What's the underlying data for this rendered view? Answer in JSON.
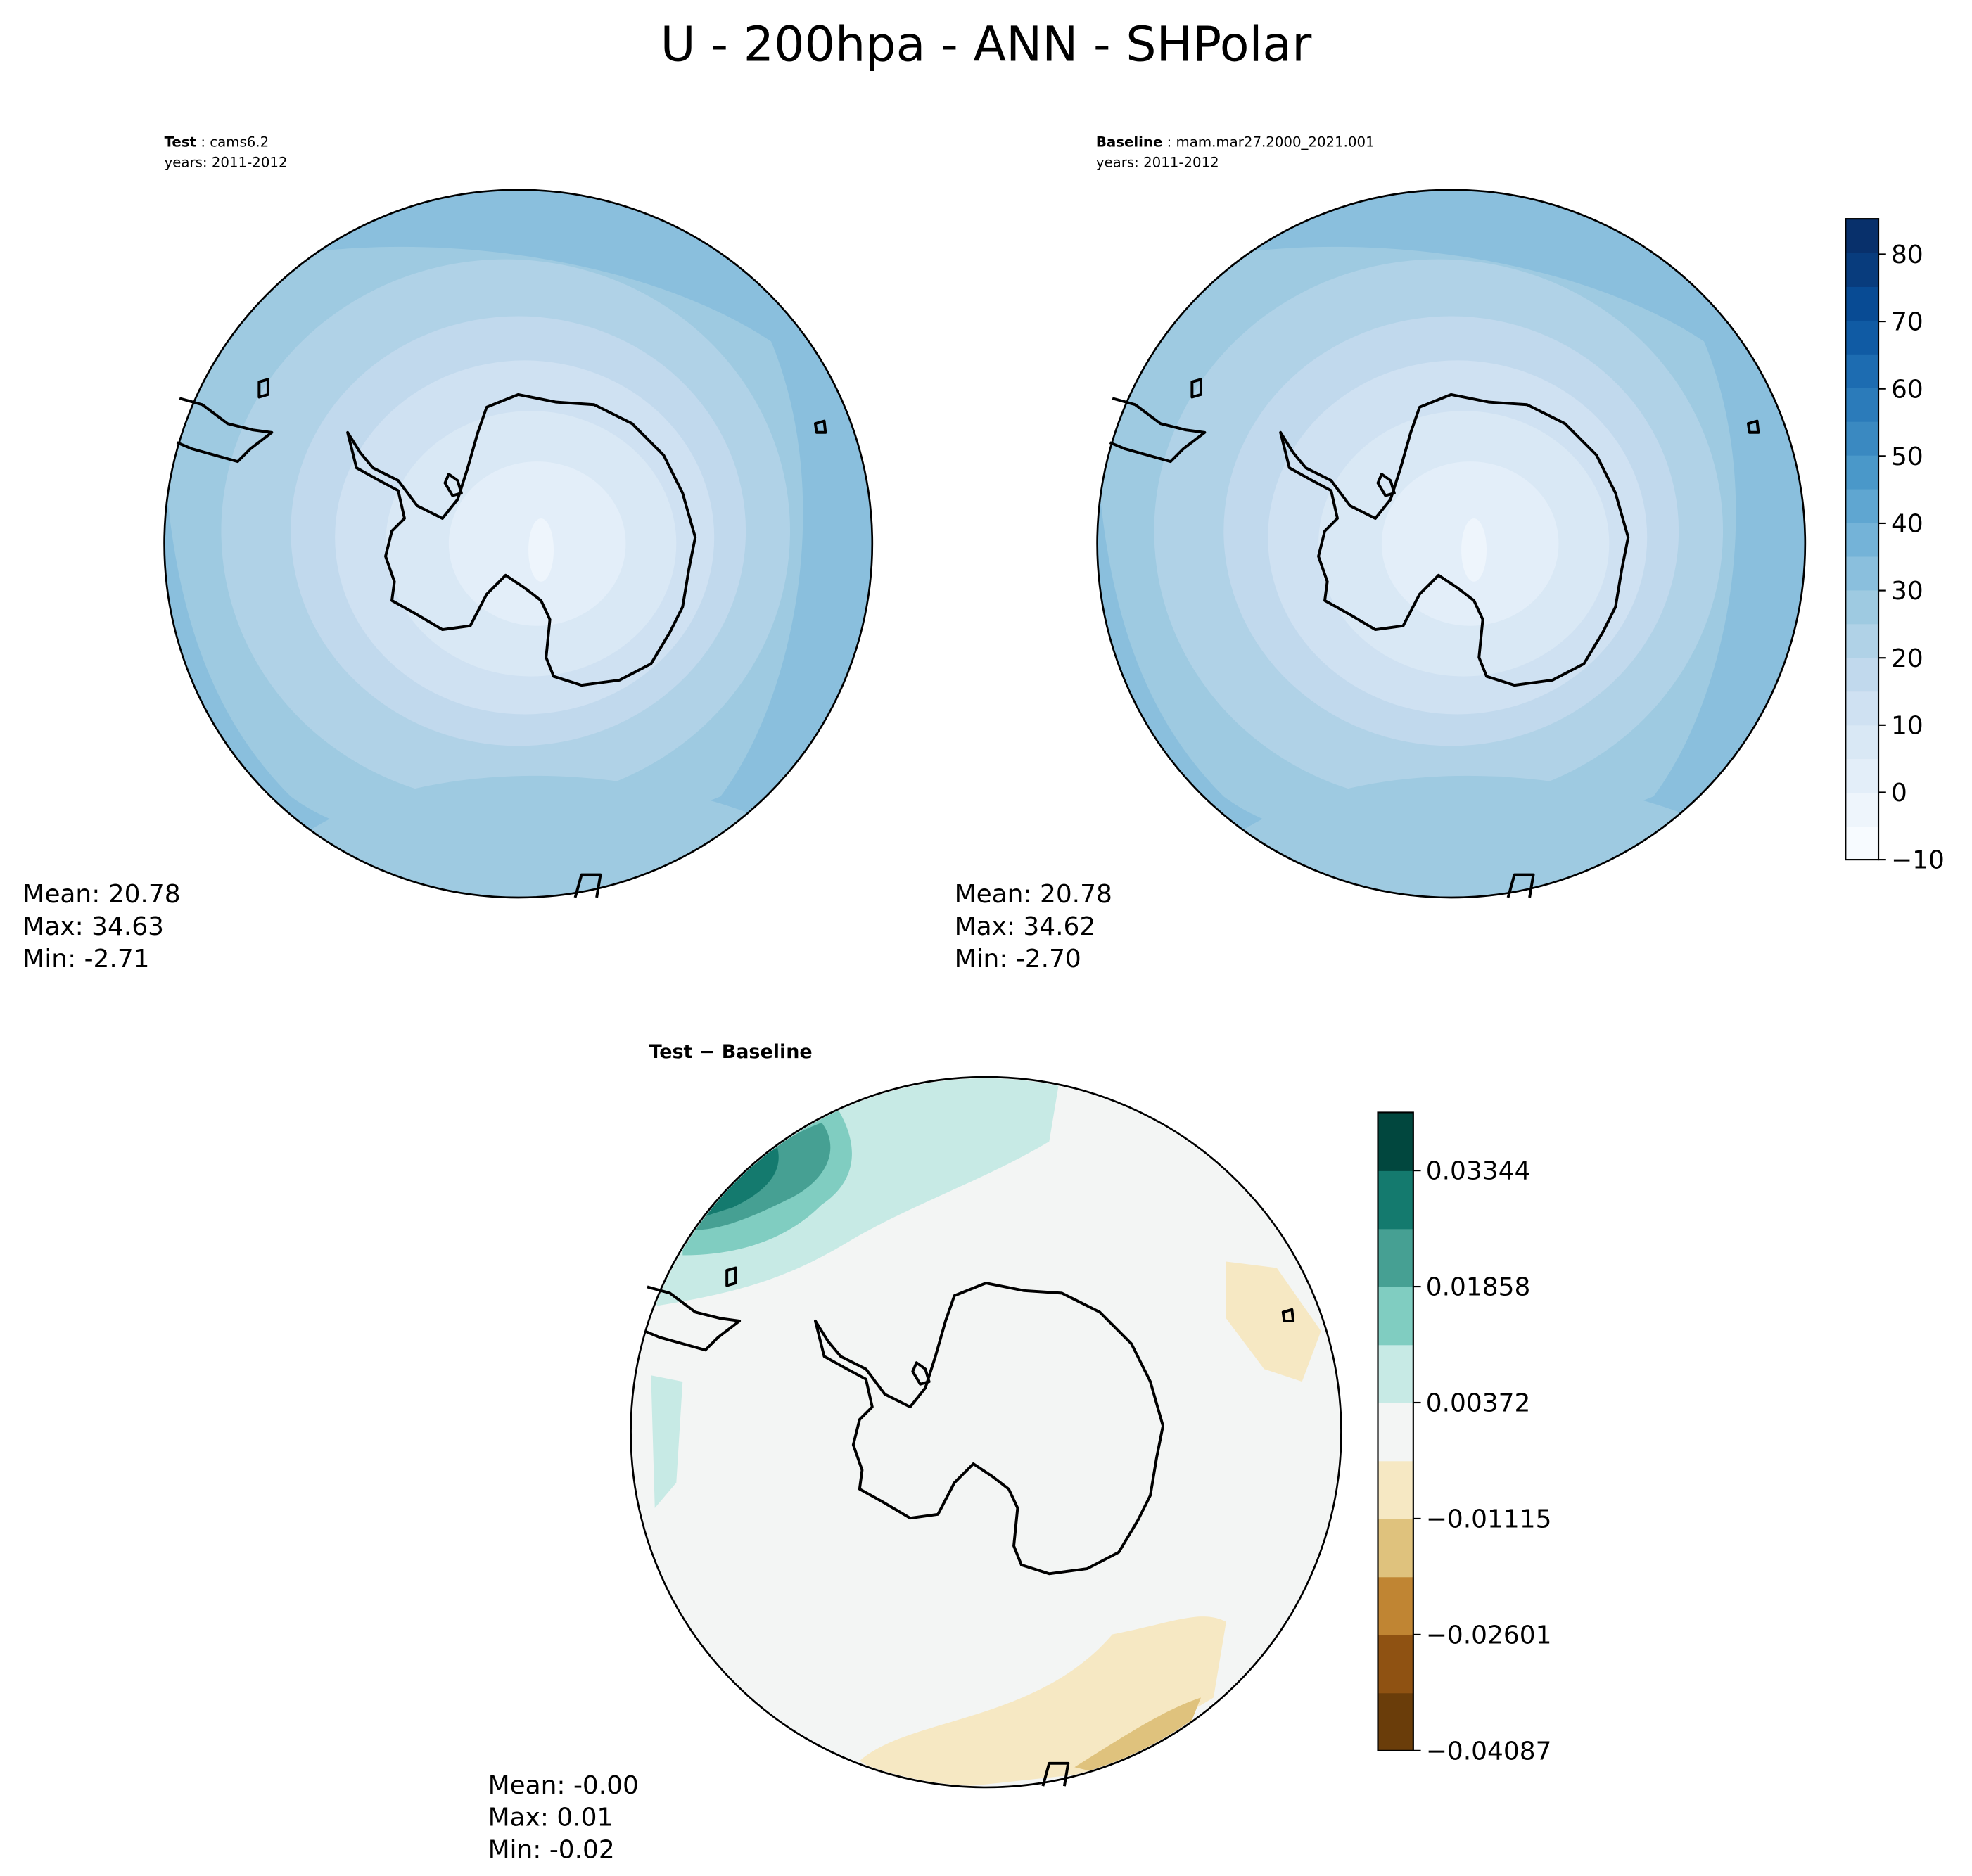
{
  "title": "U - 200hpa - ANN - SHPolar",
  "panels": [
    {
      "label_name": "Test",
      "label_rest": ": cams6.2",
      "years": "years: 2011-2012",
      "stats": [
        "Mean: 20.78",
        "Max: 34.63",
        "Min: -2.71"
      ]
    },
    {
      "label_name": "Baseline",
      "label_rest": ": mam.mar27.2000_2021.001",
      "years": "years: 2011-2012",
      "stats": [
        "Mean: 20.78",
        "Max: 34.62",
        "Min: -2.70"
      ]
    },
    {
      "label_name": "Test − Baseline",
      "stats": [
        "Mean: -0.00",
        "Max:  0.01",
        "Min: -0.02"
      ]
    }
  ],
  "colorbars": [
    {
      "ticks": [
        "−10",
        "0",
        "10",
        "20",
        "30",
        "40",
        "50",
        "60",
        "70",
        "80"
      ],
      "colors": [
        "#f7fbff",
        "#eef5fc",
        "#e3eef9",
        "#d9e8f5",
        "#cfe1f2",
        "#c1d9ed",
        "#b0d2e7",
        "#9ecae1",
        "#8abfdd",
        "#74b3d8",
        "#5fa6d1",
        "#4a98c9",
        "#3a89c1",
        "#2b7bba",
        "#1d6cb1",
        "#105ba4",
        "#084b94",
        "#083c7d",
        "#08306b"
      ]
    },
    {
      "ticks": [
        "−0.04087",
        "−0.02601",
        "−0.01115",
        "0.00372",
        "0.01858",
        "0.03344"
      ],
      "colors": [
        "#6a3d0a",
        "#8f5212",
        "#c08533",
        "#dfc27d",
        "#f6e8c3",
        "#f3f5f4",
        "#c7eae5",
        "#80cdc1",
        "#46a093",
        "#147a6e",
        "#01473e"
      ]
    }
  ]
}
